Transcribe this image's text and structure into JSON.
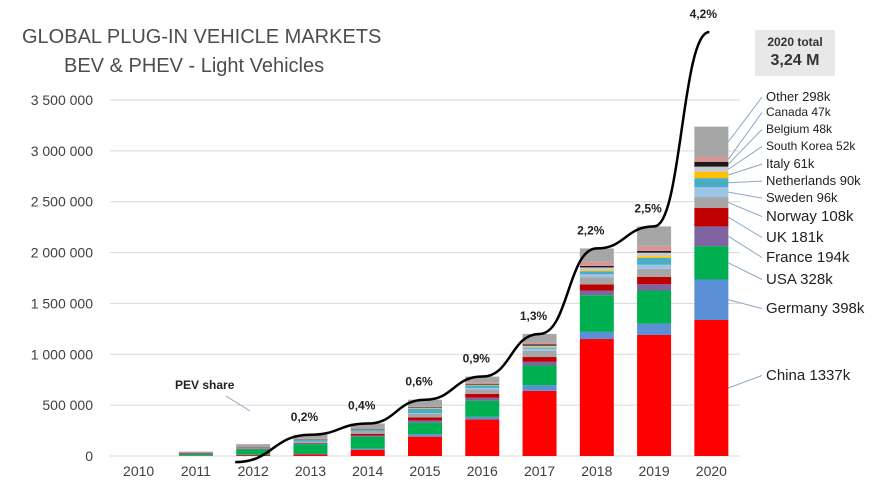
{
  "chart_data": {
    "type": "bar",
    "stacked": true,
    "title": "GLOBAL PLUG-IN VEHICLE MARKETS",
    "subtitle": "BEV & PHEV - Light Vehicles",
    "categories": [
      "2010",
      "2011",
      "2012",
      "2013",
      "2014",
      "2015",
      "2016",
      "2017",
      "2018",
      "2019",
      "2020"
    ],
    "ylim": [
      0,
      3500000
    ],
    "yticks": [
      0,
      500000,
      1000000,
      1500000,
      2000000,
      2500000,
      3000000,
      3500000
    ],
    "ytick_labels": [
      "0",
      "500 000",
      "1 000 000",
      "1 500 000",
      "2 000 000",
      "2 500 000",
      "3 000 000",
      "3 500 000"
    ],
    "grid": true,
    "series": [
      {
        "name": "China",
        "color": "#ff0000",
        "values": [
          0,
          5000,
          10000,
          15000,
          60000,
          190000,
          360000,
          640000,
          1150000,
          1190000,
          1337000
        ]
      },
      {
        "name": "Germany",
        "color": "#5b8fd6",
        "values": [
          0,
          2000,
          3000,
          5000,
          12000,
          24000,
          25000,
          55000,
          70000,
          110000,
          398000
        ]
      },
      {
        "name": "USA",
        "color": "#00b050",
        "values": [
          0,
          17000,
          52000,
          97000,
          118000,
          114000,
          159000,
          195000,
          361000,
          327000,
          328000
        ]
      },
      {
        "name": "France",
        "color": "#8064a2",
        "values": [
          0,
          3000,
          6000,
          9000,
          12000,
          22000,
          29000,
          36000,
          45000,
          61000,
          194000
        ]
      },
      {
        "name": "UK",
        "color": "#c00000",
        "values": [
          0,
          1000,
          2000,
          4000,
          15000,
          29000,
          37000,
          47000,
          60000,
          72000,
          181000
        ]
      },
      {
        "name": "Norway",
        "color": "#a6a6a6",
        "values": [
          0,
          2000,
          4000,
          8000,
          19000,
          34000,
          45000,
          62000,
          72000,
          80000,
          108000
        ]
      },
      {
        "name": "Sweden",
        "color": "#9dc3e6",
        "values": [
          0,
          500,
          1000,
          2000,
          4000,
          9000,
          14000,
          20000,
          29000,
          40000,
          96000
        ]
      },
      {
        "name": "Netherlands",
        "color": "#4bacc6",
        "values": [
          0,
          1000,
          5000,
          23000,
          15000,
          44000,
          25000,
          11000,
          27000,
          67000,
          90000
        ]
      },
      {
        "name": "Italy",
        "color": "#ffc000",
        "values": [
          0,
          300,
          500,
          1000,
          1500,
          2500,
          3000,
          5000,
          10000,
          17000,
          61000
        ]
      },
      {
        "name": "South Korea",
        "color": "#c9c9c9",
        "values": [
          0,
          300,
          500,
          800,
          1200,
          3000,
          5000,
          14000,
          30000,
          35000,
          52000
        ]
      },
      {
        "name": "Belgium",
        "color": "#1a1a1a",
        "values": [
          0,
          300,
          700,
          1000,
          2000,
          5000,
          8000,
          12000,
          15000,
          17000,
          48000
        ]
      },
      {
        "name": "Canada",
        "color": "#d99594",
        "values": [
          0,
          500,
          2000,
          3000,
          5000,
          7000,
          11000,
          18000,
          42000,
          51000,
          47000
        ]
      },
      {
        "name": "Other",
        "color": "#a6a6a6",
        "values": [
          0,
          10000,
          30000,
          40000,
          55000,
          70000,
          60000,
          85000,
          130000,
          190000,
          298000
        ]
      }
    ],
    "pev_share": {
      "label": "PEV share",
      "x": [
        "2012",
        "2013",
        "2014",
        "2015",
        "2016",
        "2017",
        "2018",
        "2019",
        "2020"
      ],
      "labels": [
        "",
        "0,2%",
        "0,4%",
        "0,6%",
        "0,9%",
        "1,3%",
        "2,2%",
        "2,5%",
        "4,2%"
      ]
    },
    "legend_labels": {
      "China": "China  1337k",
      "Germany": "Germany  398k",
      "USA": "USA  328k",
      "France": "France  194k",
      "UK": "UK  181k",
      "Norway": "Norway  108k",
      "Sweden": "Sweden  96k",
      "Netherlands": "Netherlands  90k",
      "Italy": "Italy  61k",
      "South Korea": "South Korea  52k",
      "Belgium": "Belgium  48k",
      "Canada": "Canada 47k",
      "Other": "Other 298k"
    }
  },
  "total_box": {
    "label": "2020 total",
    "value": "3,24 M"
  }
}
